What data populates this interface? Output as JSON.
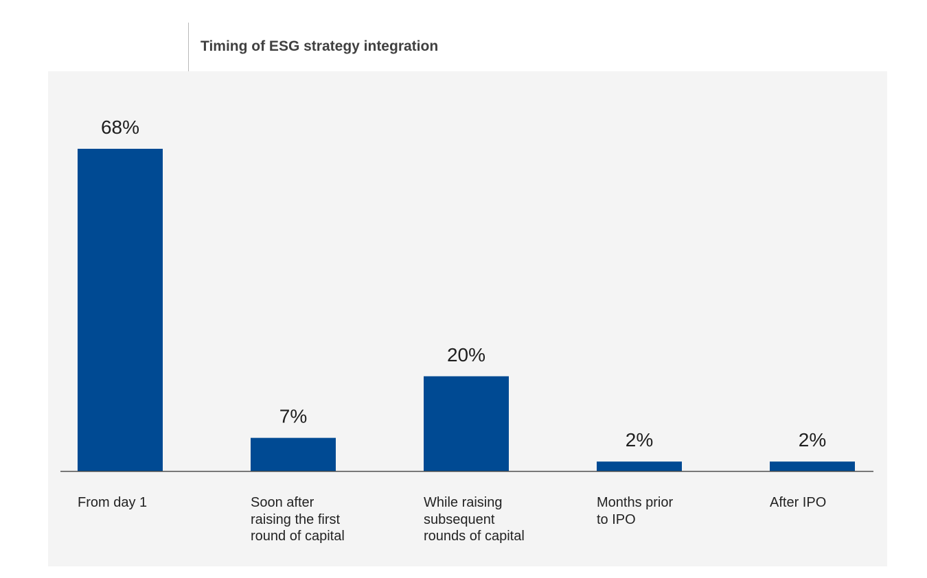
{
  "chart_data": {
    "type": "bar",
    "title": "Timing of ESG strategy integration",
    "categories": [
      "From day 1",
      "Soon after\nraising the first\nround of capital",
      "While raising\nsubsequent\nrounds of capital",
      "Months prior\nto IPO",
      "After IPO"
    ],
    "values": [
      68,
      7,
      20,
      2,
      2
    ],
    "value_labels": [
      "68%",
      "7%",
      "20%",
      "2%",
      "2%"
    ],
    "unit": "%",
    "ylim": [
      0,
      68
    ],
    "grid": false,
    "legend": "none",
    "xlabel": "",
    "ylabel": ""
  },
  "colors": {
    "bar": "#004A93",
    "baseline": "#4a4a4a",
    "panel": "#f4f4f4"
  }
}
